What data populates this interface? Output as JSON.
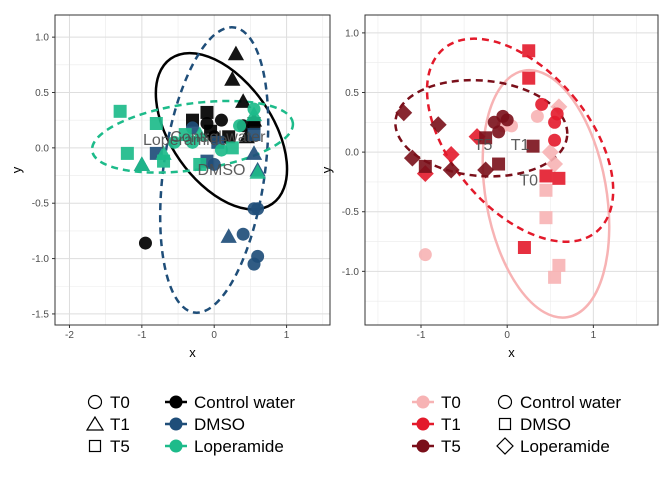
{
  "chart_data": [
    {
      "type": "scatter",
      "panel": "left",
      "xlabel": "x",
      "ylabel": "y",
      "xlim": [
        -2.2,
        1.6
      ],
      "ylim": [
        -1.6,
        1.2
      ],
      "xticks": [
        -2,
        -1,
        0,
        1
      ],
      "yticks": [
        -1.5,
        -1.0,
        -0.5,
        0.0,
        0.5,
        1.0
      ],
      "grid": true,
      "color_by": "treatment",
      "shape_by": "time",
      "colors": {
        "Control water": "#000000",
        "DMSO": "#1f4e79",
        "Loperamide": "#1dbb8a"
      },
      "ellipses": [
        {
          "group": "Control water",
          "cx": 0.1,
          "cy": 0.15,
          "rx": 0.7,
          "ry": 0.8,
          "angle": 35,
          "style": "solid",
          "color": "#000000"
        },
        {
          "group": "DMSO",
          "cx": 0.0,
          "cy": -0.2,
          "rx": 0.7,
          "ry": 1.3,
          "angle": -8,
          "style": "dashed",
          "color": "#1f4e79"
        },
        {
          "group": "Loperamide",
          "cx": -0.3,
          "cy": 0.1,
          "rx": 1.4,
          "ry": 0.3,
          "angle": 8,
          "style": "dashed",
          "color": "#1dbb8a"
        }
      ],
      "annotations": [
        {
          "text": "Control water",
          "x": 0.05,
          "y": 0.1
        },
        {
          "text": "Loperamide",
          "x": -0.4,
          "y": 0.07
        },
        {
          "text": "DMSO",
          "x": 0.1,
          "y": -0.2
        }
      ],
      "points": [
        {
          "group": "Control water",
          "time": "T0",
          "x": -0.95,
          "y": -0.86
        },
        {
          "group": "Control water",
          "time": "T0",
          "x": 0.0,
          "y": 0.1
        },
        {
          "group": "Control water",
          "time": "T0",
          "x": -0.1,
          "y": 0.22
        },
        {
          "group": "Control water",
          "time": "T0",
          "x": 0.1,
          "y": 0.25
        },
        {
          "group": "Control water",
          "time": "T0",
          "x": 0.4,
          "y": 0.2
        },
        {
          "group": "Control water",
          "time": "T1",
          "x": 0.3,
          "y": 0.85
        },
        {
          "group": "Control water",
          "time": "T1",
          "x": 0.25,
          "y": 0.62
        },
        {
          "group": "Control water",
          "time": "T1",
          "x": 0.4,
          "y": 0.42
        },
        {
          "group": "Control water",
          "time": "T1",
          "x": 0.55,
          "y": 0.25
        },
        {
          "group": "Control water",
          "time": "T1",
          "x": 0.45,
          "y": 0.1
        },
        {
          "group": "Control water",
          "time": "T5",
          "x": -0.3,
          "y": 0.25
        },
        {
          "group": "Control water",
          "time": "T5",
          "x": -0.1,
          "y": 0.32
        },
        {
          "group": "Control water",
          "time": "T5",
          "x": -0.05,
          "y": 0.15
        },
        {
          "group": "Control water",
          "time": "T5",
          "x": 0.55,
          "y": 0.22
        },
        {
          "group": "Control water",
          "time": "T5",
          "x": 0.2,
          "y": 0.1
        },
        {
          "group": "DMSO",
          "time": "T0",
          "x": -0.3,
          "y": 0.18
        },
        {
          "group": "DMSO",
          "time": "T0",
          "x": 0.0,
          "y": -0.15
        },
        {
          "group": "DMSO",
          "time": "T0",
          "x": 0.6,
          "y": -0.55
        },
        {
          "group": "DMSO",
          "time": "T0",
          "x": 0.55,
          "y": -0.55
        },
        {
          "group": "DMSO",
          "time": "T0",
          "x": 0.4,
          "y": -0.78
        },
        {
          "group": "DMSO",
          "time": "T0",
          "x": 0.6,
          "y": -0.98
        },
        {
          "group": "DMSO",
          "time": "T0",
          "x": 0.55,
          "y": -1.05
        },
        {
          "group": "DMSO",
          "time": "T1",
          "x": -1.0,
          "y": -0.15
        },
        {
          "group": "DMSO",
          "time": "T1",
          "x": 0.6,
          "y": -0.2
        },
        {
          "group": "DMSO",
          "time": "T1",
          "x": 0.55,
          "y": -0.05
        },
        {
          "group": "DMSO",
          "time": "T1",
          "x": 0.2,
          "y": -0.8
        },
        {
          "group": "DMSO",
          "time": "T5",
          "x": -0.8,
          "y": -0.05
        },
        {
          "group": "DMSO",
          "time": "T5",
          "x": -0.1,
          "y": -0.12
        },
        {
          "group": "DMSO",
          "time": "T5",
          "x": 0.05,
          "y": 0.05
        },
        {
          "group": "DMSO",
          "time": "T5",
          "x": 0.55,
          "y": 0.12
        },
        {
          "group": "Loperamide",
          "time": "T0",
          "x": -0.55,
          "y": 0.05
        },
        {
          "group": "Loperamide",
          "time": "T0",
          "x": -0.3,
          "y": 0.05
        },
        {
          "group": "Loperamide",
          "time": "T0",
          "x": 0.35,
          "y": 0.2
        },
        {
          "group": "Loperamide",
          "time": "T0",
          "x": 0.1,
          "y": -0.02
        },
        {
          "group": "Loperamide",
          "time": "T0",
          "x": 0.55,
          "y": 0.35
        },
        {
          "group": "Loperamide",
          "time": "T1",
          "x": -1.0,
          "y": -0.15
        },
        {
          "group": "Loperamide",
          "time": "T1",
          "x": -0.7,
          "y": -0.05
        },
        {
          "group": "Loperamide",
          "time": "T1",
          "x": -0.2,
          "y": 0.12
        },
        {
          "group": "Loperamide",
          "time": "T1",
          "x": 0.55,
          "y": 0.3
        },
        {
          "group": "Loperamide",
          "time": "T1",
          "x": 0.6,
          "y": -0.22
        },
        {
          "group": "Loperamide",
          "time": "T5",
          "x": -1.3,
          "y": 0.33
        },
        {
          "group": "Loperamide",
          "time": "T5",
          "x": -1.2,
          "y": -0.05
        },
        {
          "group": "Loperamide",
          "time": "T5",
          "x": -0.8,
          "y": 0.22
        },
        {
          "group": "Loperamide",
          "time": "T5",
          "x": -0.7,
          "y": -0.12
        },
        {
          "group": "Loperamide",
          "time": "T5",
          "x": -0.4,
          "y": 0.12
        },
        {
          "group": "Loperamide",
          "time": "T5",
          "x": -0.2,
          "y": -0.15
        },
        {
          "group": "Loperamide",
          "time": "T5",
          "x": 0.25,
          "y": 0.0
        }
      ]
    },
    {
      "type": "scatter",
      "panel": "right",
      "xlabel": "x",
      "ylabel": "y",
      "xlim": [
        -1.65,
        1.75
      ],
      "ylim": [
        -1.45,
        1.15
      ],
      "xticks": [
        -1,
        0,
        1
      ],
      "yticks": [
        -1.0,
        -0.5,
        0.0,
        0.5,
        1.0
      ],
      "grid": true,
      "color_by": "time",
      "shape_by": "treatment",
      "colors": {
        "T0": "#f7b3b4",
        "T1": "#e31a2b",
        "T5": "#7a0f1a"
      },
      "ellipses": [
        {
          "group": "T0",
          "cx": 0.45,
          "cy": -0.35,
          "rx": 0.7,
          "ry": 1.05,
          "angle": 10,
          "style": "solid",
          "color": "#f7b3b4"
        },
        {
          "group": "T1",
          "cx": 0.15,
          "cy": 0.1,
          "rx": 0.8,
          "ry": 1.0,
          "angle": 40,
          "style": "dashed",
          "color": "#e31a2b"
        },
        {
          "group": "T5",
          "cx": -0.3,
          "cy": 0.2,
          "rx": 1.0,
          "ry": 0.4,
          "angle": -5,
          "style": "dashed",
          "color": "#7a0f1a"
        }
      ],
      "annotations": [
        {
          "text": "T5",
          "x": -0.28,
          "y": 0.06
        },
        {
          "text": "T1",
          "x": 0.15,
          "y": 0.06
        },
        {
          "text": "T0",
          "x": 0.25,
          "y": -0.24
        }
      ],
      "points": [
        {
          "group": "T0",
          "treatment": "Control water",
          "x": -0.95,
          "y": -0.86
        },
        {
          "group": "T0",
          "treatment": "Control water",
          "x": -0.05,
          "y": 0.22
        },
        {
          "group": "T0",
          "treatment": "Control water",
          "x": 0.05,
          "y": 0.22
        },
        {
          "group": "T0",
          "treatment": "Control water",
          "x": 0.35,
          "y": 0.3
        },
        {
          "group": "T0",
          "treatment": "DMSO",
          "x": 0.45,
          "y": -0.32
        },
        {
          "group": "T0",
          "treatment": "DMSO",
          "x": 0.45,
          "y": -0.55
        },
        {
          "group": "T0",
          "treatment": "DMSO",
          "x": 0.6,
          "y": -0.95
        },
        {
          "group": "T0",
          "treatment": "DMSO",
          "x": 0.55,
          "y": -1.05
        },
        {
          "group": "T0",
          "treatment": "Loperamide",
          "x": 0.6,
          "y": 0.38
        },
        {
          "group": "T0",
          "treatment": "Loperamide",
          "x": 0.5,
          "y": 0.0
        },
        {
          "group": "T0",
          "treatment": "Loperamide",
          "x": 0.55,
          "y": -0.1
        },
        {
          "group": "T1",
          "treatment": "Control water",
          "x": 0.4,
          "y": 0.4
        },
        {
          "group": "T1",
          "treatment": "Control water",
          "x": 0.55,
          "y": 0.25
        },
        {
          "group": "T1",
          "treatment": "Control water",
          "x": 0.58,
          "y": 0.32
        },
        {
          "group": "T1",
          "treatment": "Control water",
          "x": 0.55,
          "y": 0.1
        },
        {
          "group": "T1",
          "treatment": "DMSO",
          "x": 0.25,
          "y": 0.85
        },
        {
          "group": "T1",
          "treatment": "DMSO",
          "x": 0.25,
          "y": 0.62
        },
        {
          "group": "T1",
          "treatment": "DMSO",
          "x": 0.45,
          "y": -0.2
        },
        {
          "group": "T1",
          "treatment": "DMSO",
          "x": 0.6,
          "y": -0.22
        },
        {
          "group": "T1",
          "treatment": "DMSO",
          "x": 0.2,
          "y": -0.8
        },
        {
          "group": "T1",
          "treatment": "Loperamide",
          "x": -0.95,
          "y": -0.18
        },
        {
          "group": "T1",
          "treatment": "Loperamide",
          "x": -0.65,
          "y": -0.02
        },
        {
          "group": "T1",
          "treatment": "Loperamide",
          "x": -0.35,
          "y": 0.13
        },
        {
          "group": "T5",
          "treatment": "Control water",
          "x": -0.15,
          "y": 0.25
        },
        {
          "group": "T5",
          "treatment": "Control water",
          "x": -0.05,
          "y": 0.3
        },
        {
          "group": "T5",
          "treatment": "Control water",
          "x": 0.0,
          "y": 0.27
        },
        {
          "group": "T5",
          "treatment": "Control water",
          "x": -0.1,
          "y": 0.17
        },
        {
          "group": "T5",
          "treatment": "DMSO",
          "x": -0.95,
          "y": -0.12
        },
        {
          "group": "T5",
          "treatment": "DMSO",
          "x": -0.25,
          "y": 0.12
        },
        {
          "group": "T5",
          "treatment": "DMSO",
          "x": -0.1,
          "y": -0.1
        },
        {
          "group": "T5",
          "treatment": "DMSO",
          "x": 0.3,
          "y": 0.05
        },
        {
          "group": "T5",
          "treatment": "Loperamide",
          "x": -1.2,
          "y": 0.33
        },
        {
          "group": "T5",
          "treatment": "Loperamide",
          "x": -1.1,
          "y": -0.05
        },
        {
          "group": "T5",
          "treatment": "Loperamide",
          "x": -0.8,
          "y": 0.23
        },
        {
          "group": "T5",
          "treatment": "Loperamide",
          "x": -0.65,
          "y": -0.15
        },
        {
          "group": "T5",
          "treatment": "Loperamide",
          "x": -0.25,
          "y": -0.15
        }
      ]
    }
  ],
  "legends": {
    "left_shapes": [
      {
        "label": "T0",
        "shape": "circle"
      },
      {
        "label": "T1",
        "shape": "triangle"
      },
      {
        "label": "T5",
        "shape": "square"
      }
    ],
    "left_colors": [
      {
        "label": "Control water",
        "color": "#000000"
      },
      {
        "label": "DMSO",
        "color": "#1f4e79"
      },
      {
        "label": "Loperamide",
        "color": "#1dbb8a"
      }
    ],
    "right_colors": [
      {
        "label": "T0",
        "color": "#f7b3b4"
      },
      {
        "label": "T1",
        "color": "#e31a2b"
      },
      {
        "label": "T5",
        "color": "#7a0f1a"
      }
    ],
    "right_shapes": [
      {
        "label": "Control water",
        "shape": "circle"
      },
      {
        "label": "DMSO",
        "shape": "square"
      },
      {
        "label": "Loperamide",
        "shape": "diamond"
      }
    ]
  }
}
